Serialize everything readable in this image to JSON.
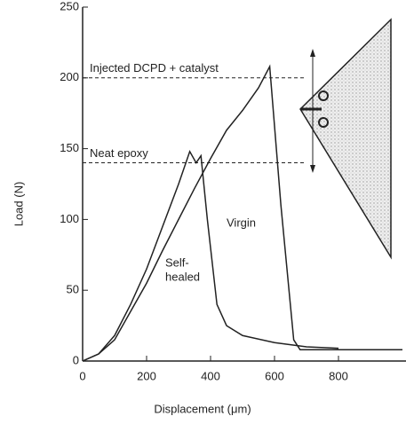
{
  "chart_data": {
    "type": "line",
    "xlabel": "Displacement (μm)",
    "ylabel": "Load (N)",
    "xlim": [
      0,
      1000
    ],
    "ylim": [
      0,
      250
    ],
    "xticks": [
      0,
      200,
      400,
      600,
      800
    ],
    "yticks": [
      0,
      50,
      100,
      150,
      200,
      250
    ],
    "series": [
      {
        "name": "Virgin",
        "color": "#222222",
        "x": [
          0,
          50,
          100,
          150,
          200,
          250,
          300,
          350,
          400,
          450,
          500,
          550,
          585,
          620,
          660,
          680,
          800,
          1000
        ],
        "values": [
          0,
          5,
          15,
          35,
          55,
          78,
          100,
          122,
          143,
          163,
          177,
          193,
          208,
          110,
          15,
          8,
          8,
          8
        ]
      },
      {
        "name_lines": [
          "Self-",
          "healed"
        ],
        "color": "#222222",
        "x": [
          0,
          50,
          100,
          150,
          200,
          250,
          300,
          335,
          355,
          370,
          390,
          420,
          450,
          500,
          600,
          700,
          800
        ],
        "values": [
          0,
          5,
          18,
          40,
          65,
          95,
          125,
          148,
          140,
          145,
          100,
          40,
          25,
          18,
          13,
          10,
          9
        ]
      }
    ],
    "reference_lines": [
      {
        "label": "Injected DCPD + catalyst",
        "value": 200
      },
      {
        "label": "Neat epoxy",
        "value": 140
      }
    ]
  }
}
